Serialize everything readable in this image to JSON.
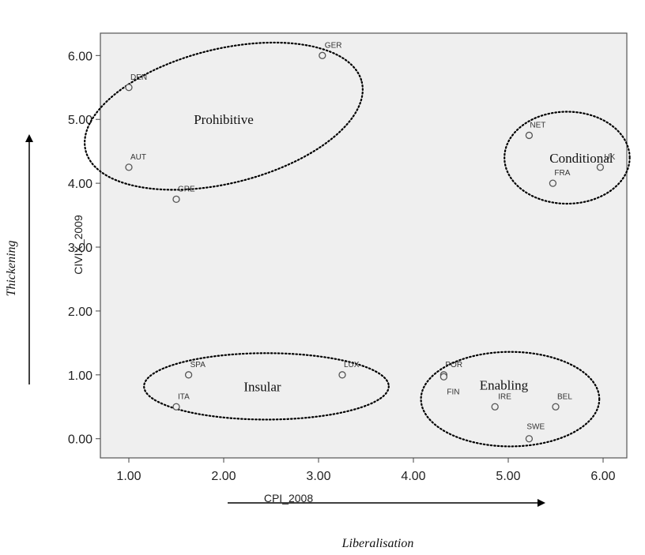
{
  "chart_data": {
    "type": "scatter",
    "xlabel": "CPI_2008",
    "ylabel": "CIVIX_2009",
    "xlim": [
      0.7,
      6.25
    ],
    "ylim": [
      -0.3,
      6.35
    ],
    "x_ticks": [
      "1.00",
      "2.00",
      "3.00",
      "4.00",
      "5.00",
      "6.00"
    ],
    "y_ticks": [
      "0.00",
      "1.00",
      "2.00",
      "3.00",
      "4.00",
      "5.00",
      "6.00"
    ],
    "points": [
      {
        "label": "GER",
        "x": 3.04,
        "y": 6.0
      },
      {
        "label": "DEN",
        "x": 1.0,
        "y": 5.5
      },
      {
        "label": "AUT",
        "x": 1.0,
        "y": 4.25
      },
      {
        "label": "GRE",
        "x": 1.5,
        "y": 3.75
      },
      {
        "label": "NET",
        "x": 5.22,
        "y": 4.75
      },
      {
        "label": "UK",
        "x": 5.97,
        "y": 4.25
      },
      {
        "label": "FRA",
        "x": 5.47,
        "y": 4.0
      },
      {
        "label": "SPA",
        "x": 1.63,
        "y": 1.0
      },
      {
        "label": "ITA",
        "x": 1.5,
        "y": 0.5
      },
      {
        "label": "LUX",
        "x": 3.25,
        "y": 1.0
      },
      {
        "label": "POR",
        "x": 4.32,
        "y": 1.0
      },
      {
        "label": "FIN",
        "x": 4.32,
        "y": 0.97
      },
      {
        "label": "IRE",
        "x": 4.86,
        "y": 0.5
      },
      {
        "label": "BEL",
        "x": 5.5,
        "y": 0.5
      },
      {
        "label": "SWE",
        "x": 5.22,
        "y": 0.0
      }
    ],
    "clusters": [
      {
        "name": "Prohibitive",
        "cx": 2.0,
        "cy": 5.05,
        "rx": 1.5,
        "ry": 1.05,
        "rot": -14
      },
      {
        "name": "Conditional",
        "cx": 5.62,
        "cy": 4.4,
        "rx": 0.66,
        "ry": 0.72,
        "rot": 0
      },
      {
        "name": "Insular",
        "cx": 2.45,
        "cy": 0.82,
        "rx": 1.29,
        "ry": 0.52,
        "rot": 0
      },
      {
        "name": "Enabling",
        "cx": 5.02,
        "cy": 0.62,
        "rx": 0.94,
        "ry": 0.74,
        "rot": 0
      }
    ],
    "grid": false,
    "arrows": {
      "x_label": "Liberalisation",
      "y_label": "Thickening"
    }
  }
}
